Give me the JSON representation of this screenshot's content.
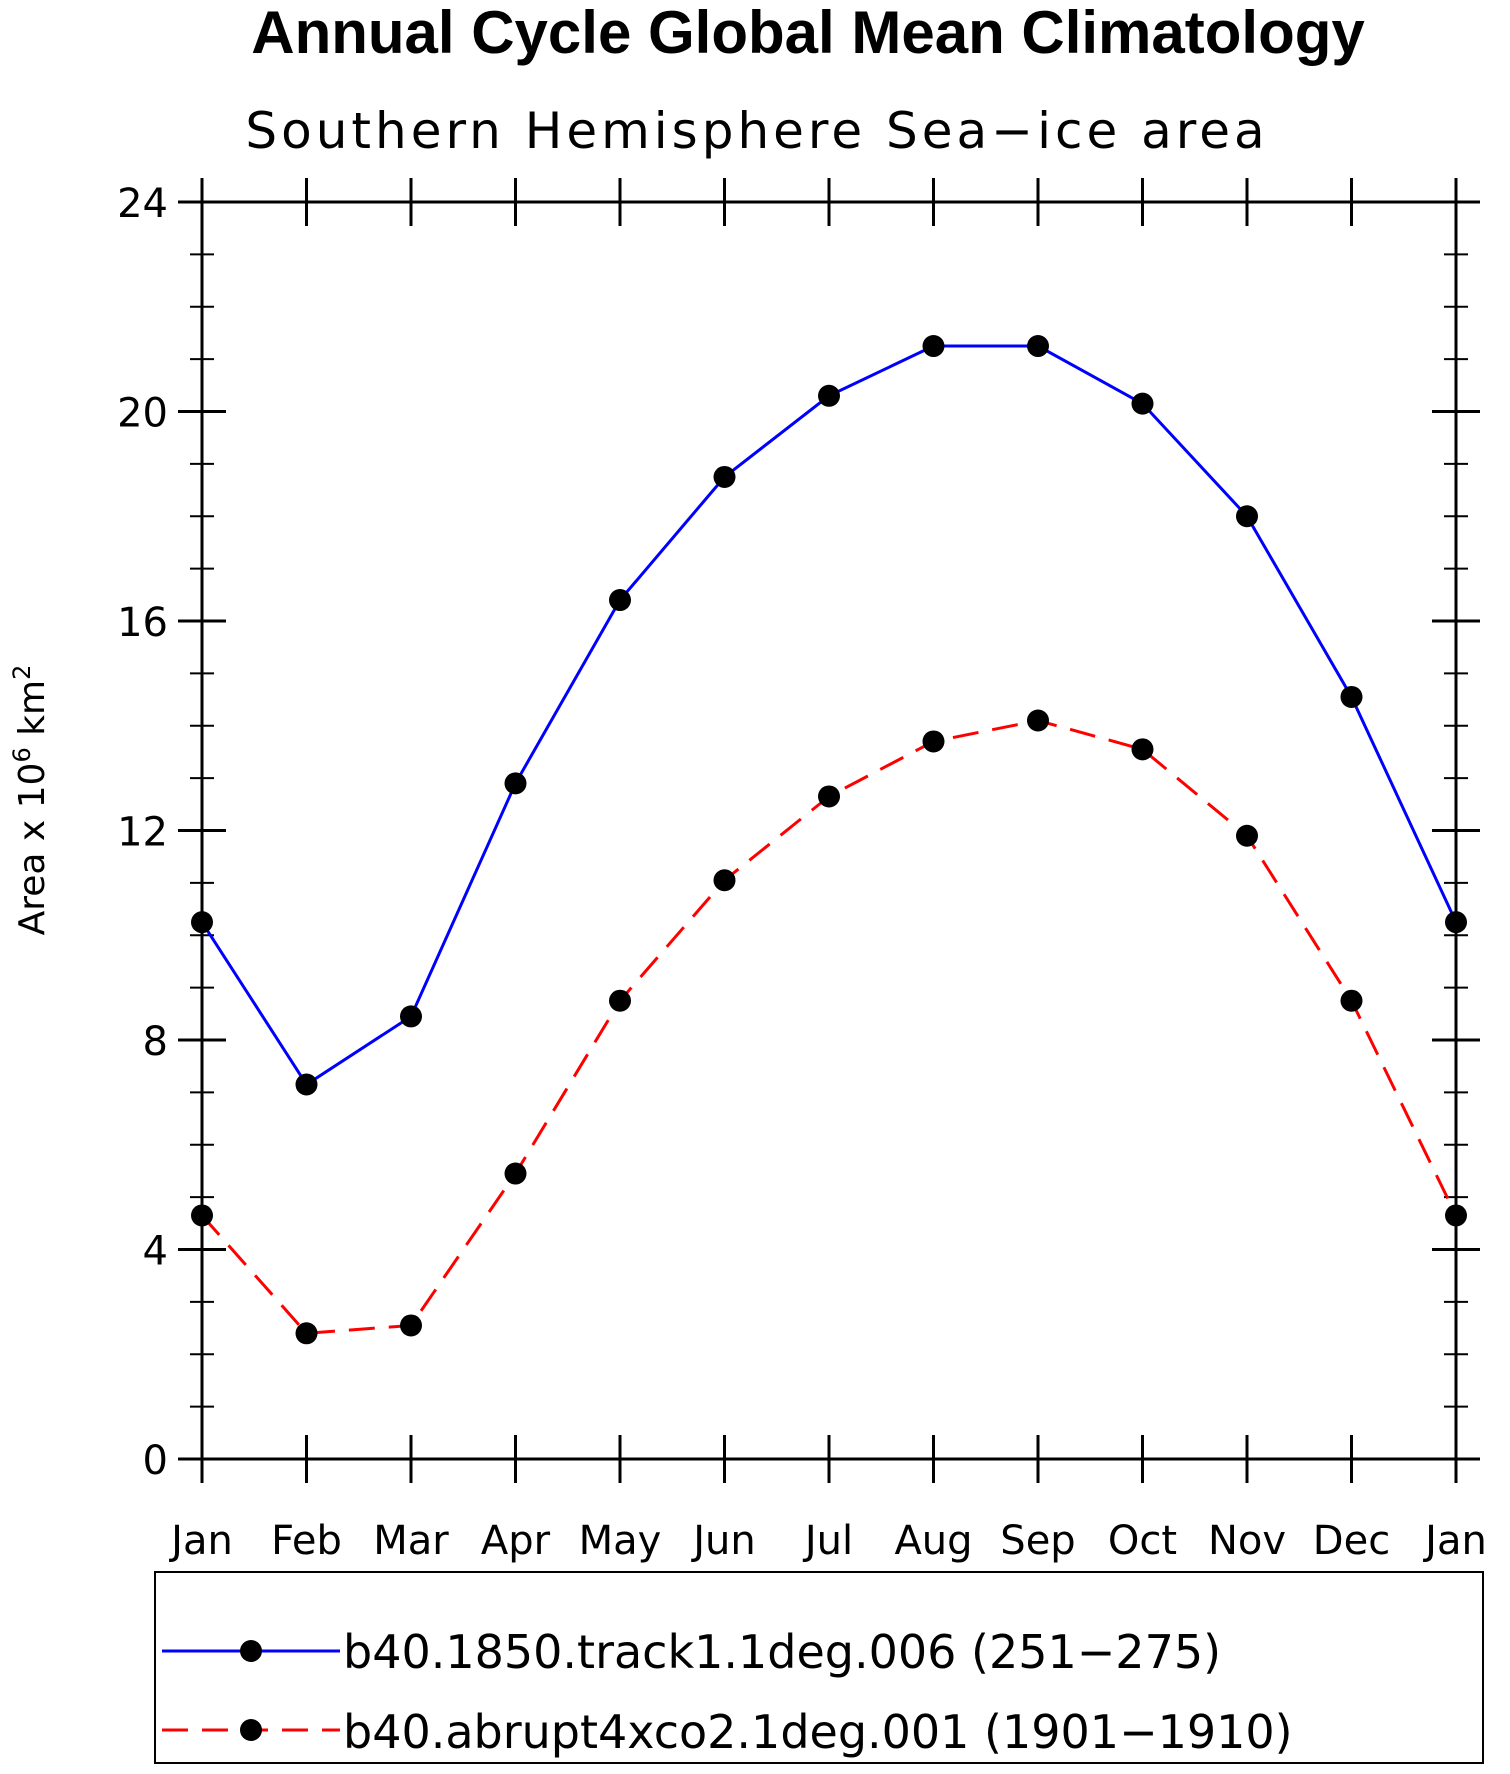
{
  "chart_data": {
    "type": "line",
    "title": "Annual Cycle Global Mean Climatology",
    "subtitle": "Southern Hemisphere Sea−ice area",
    "ylabel_prefix": "Area x 10",
    "ylabel_exp1": "6",
    "ylabel_unit": " km",
    "ylabel_exp2": "2",
    "categories": [
      "Jan",
      "Feb",
      "Mar",
      "Apr",
      "May",
      "Jun",
      "Jul",
      "Aug",
      "Sep",
      "Oct",
      "Nov",
      "Dec",
      "Jan"
    ],
    "ylim": [
      0,
      24
    ],
    "yticks": [
      "0",
      "4",
      "8",
      "12",
      "16",
      "20",
      "24"
    ],
    "ytick_values": [
      0,
      4,
      8,
      12,
      16,
      20,
      24
    ],
    "series": [
      {
        "name": "b40.1850.track1.1deg.006 (251−275)",
        "color": "#0000ff",
        "dash": "solid",
        "values": [
          10.25,
          7.15,
          8.45,
          12.9,
          16.4,
          18.75,
          20.3,
          21.25,
          21.25,
          20.15,
          18.0,
          14.55,
          10.25
        ]
      },
      {
        "name": "b40.abrupt4xco2.1deg.001 (1901−1910)",
        "color": "#ff0000",
        "dash": "dashed",
        "values": [
          4.65,
          2.4,
          2.55,
          5.45,
          8.75,
          11.05,
          12.65,
          13.7,
          14.1,
          13.55,
          11.9,
          8.75,
          4.65
        ]
      }
    ],
    "marker": "filled-circle",
    "marker_color": "#000000",
    "legend": "bottom"
  }
}
